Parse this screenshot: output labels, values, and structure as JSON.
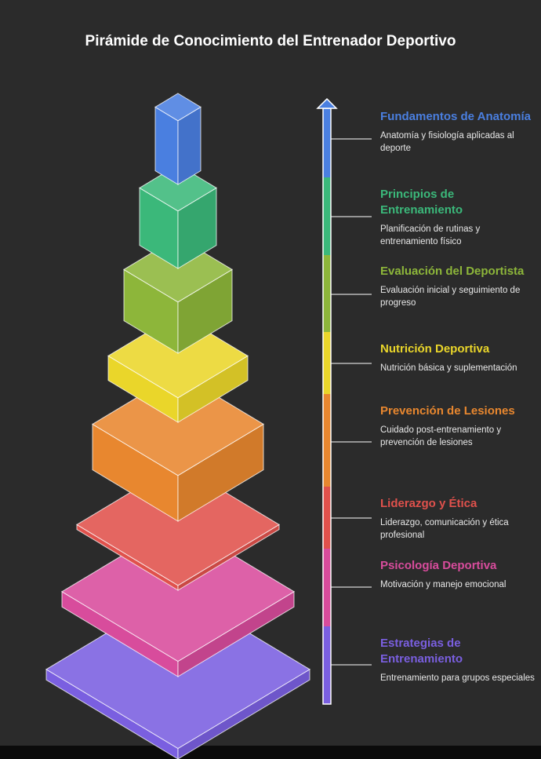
{
  "title": "Pirámide de Conocimiento del Entrenador Deportivo",
  "levels": [
    {
      "title": "Fundamentos de Anatomía",
      "description": "Anatomía y fisiología aplicadas al deporte",
      "color": "#4a7fe0"
    },
    {
      "title": "Principios de Entrenamiento",
      "description": "Planificación de rutinas y entrenamiento físico",
      "color": "#3bb87a"
    },
    {
      "title": "Evaluación del Deportista",
      "description": "Evaluación inicial y seguimiento de progreso",
      "color": "#8db63a"
    },
    {
      "title": "Nutrición Deportiva",
      "description": "Nutrición básica y suplementación",
      "color": "#ead62a"
    },
    {
      "title": "Prevención de Lesiones",
      "description": "Cuidado post-entrenamiento y prevención de lesiones",
      "color": "#e8872f"
    },
    {
      "title": "Liderazgo y Ética",
      "description": "Liderazgo, comunicación y ética profesional",
      "color": "#e0514c"
    },
    {
      "title": "Psicología Deportiva",
      "description": "Motivación y manejo emocional",
      "color": "#d84c9c"
    },
    {
      "title": "Estrategias de Entrenamiento",
      "description": "Entrenamiento para grupos especiales",
      "color": "#7a5fe0"
    }
  ]
}
